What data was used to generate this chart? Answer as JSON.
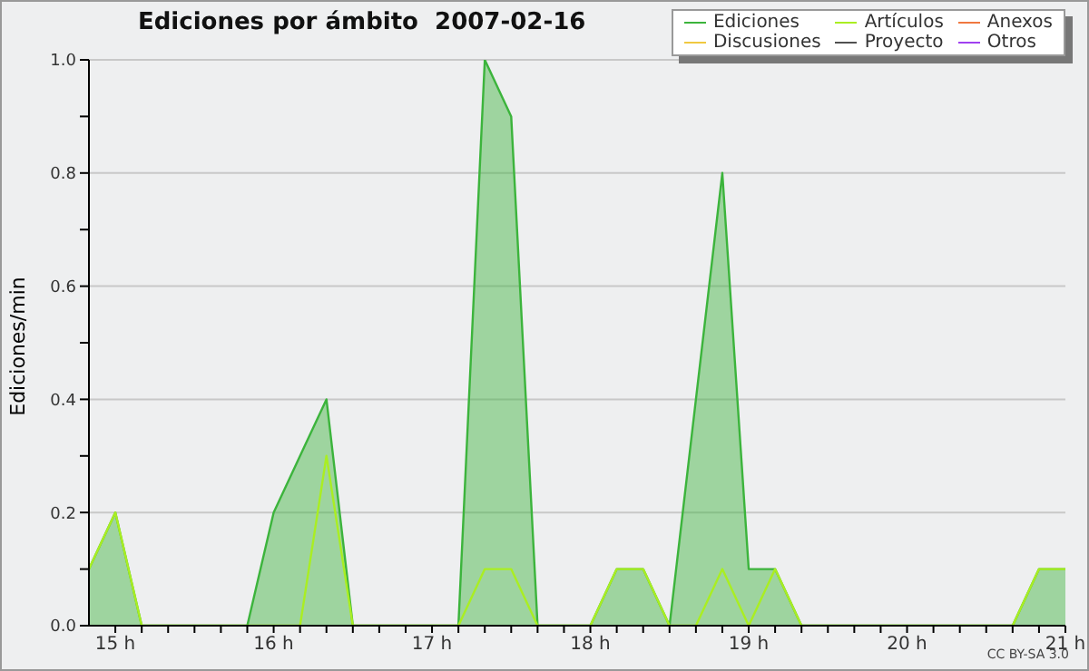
{
  "chart_data": {
    "type": "area",
    "title": "Ediciones por ámbito  2007-02-16",
    "ylabel": "Ediciones/min",
    "x": [
      14.833333,
      15,
      15.166667,
      15.333333,
      15.5,
      15.666667,
      15.833333,
      16,
      16.166667,
      16.333333,
      16.5,
      16.666667,
      16.833333,
      17,
      17.166667,
      17.333333,
      17.5,
      17.666667,
      17.833333,
      18,
      18.166667,
      18.333333,
      18.5,
      18.666667,
      18.833333,
      19,
      19.166667,
      19.333333,
      19.5,
      19.666667,
      19.833333,
      20,
      20.166667,
      20.333333,
      20.5,
      20.666667,
      20.833333,
      21
    ],
    "series": [
      {
        "name": "Ediciones",
        "color": "#3cb43c",
        "values": [
          0.1,
          0.2,
          0,
          0,
          0,
          0,
          0,
          0.2,
          0.3,
          0.4,
          0,
          0,
          0,
          0,
          0,
          1.0,
          0.9,
          0,
          0,
          0,
          0.1,
          0.1,
          0,
          0.4,
          0.8,
          0.1,
          0.1,
          0,
          0,
          0,
          0,
          0,
          0,
          0,
          0,
          0,
          0.1,
          0.1
        ]
      },
      {
        "name": "Artículos",
        "type": "line",
        "color": "#aaee22",
        "values": [
          0.1,
          0.2,
          0,
          0,
          0,
          0,
          0,
          0,
          0,
          0.3,
          0,
          0,
          0,
          0,
          0,
          0.1,
          0.1,
          0,
          0,
          0,
          0.1,
          0.1,
          0,
          0,
          0.1,
          0,
          0.1,
          0,
          0,
          0,
          0,
          0,
          0,
          0,
          0,
          0,
          0.1,
          0.1
        ]
      },
      {
        "name": "Anexos",
        "type": "line",
        "color": "#f07840",
        "values": [
          null,
          null,
          null,
          null,
          null,
          null,
          null,
          null,
          null,
          null,
          null,
          null,
          null,
          null,
          null,
          null,
          null,
          null,
          null,
          null,
          null,
          null,
          null,
          null,
          null,
          null,
          null,
          null,
          null,
          null,
          null,
          null,
          null,
          null,
          null,
          null,
          null,
          null
        ]
      },
      {
        "name": "Discusiones",
        "type": "line",
        "color": "#f0c840",
        "values": [
          null,
          null,
          null,
          null,
          null,
          null,
          null,
          null,
          null,
          null,
          null,
          null,
          null,
          null,
          null,
          null,
          null,
          null,
          null,
          null,
          null,
          null,
          null,
          null,
          null,
          null,
          null,
          null,
          null,
          null,
          null,
          null,
          null,
          null,
          null,
          null,
          null,
          null
        ]
      },
      {
        "name": "Proyecto",
        "type": "line",
        "color": "#505050",
        "values": [
          null,
          null,
          null,
          null,
          null,
          null,
          null,
          null,
          null,
          null,
          null,
          null,
          null,
          null,
          null,
          null,
          null,
          null,
          null,
          null,
          null,
          null,
          null,
          null,
          null,
          null,
          null,
          null,
          null,
          null,
          null,
          null,
          null,
          null,
          null,
          null,
          null,
          null
        ]
      },
      {
        "name": "Otros",
        "type": "line",
        "color": "#a040f0",
        "values": [
          null,
          null,
          null,
          null,
          null,
          null,
          null,
          null,
          null,
          null,
          null,
          null,
          null,
          null,
          null,
          null,
          null,
          null,
          null,
          null,
          null,
          null,
          null,
          null,
          null,
          null,
          null,
          null,
          null,
          null,
          null,
          null,
          null,
          null,
          null,
          null,
          null,
          null
        ]
      }
    ],
    "xlim": [
      14.833333,
      21
    ],
    "xticks": [
      {
        "value": 15,
        "label": "15 h"
      },
      {
        "value": 15.166667,
        "label": null
      },
      {
        "value": 15.333333,
        "label": null
      },
      {
        "value": 15.5,
        "label": null
      },
      {
        "value": 15.666667,
        "label": null
      },
      {
        "value": 15.833333,
        "label": null
      },
      {
        "value": 16,
        "label": "16 h"
      },
      {
        "value": 16.166667,
        "label": null
      },
      {
        "value": 16.333333,
        "label": null
      },
      {
        "value": 16.5,
        "label": null
      },
      {
        "value": 16.666667,
        "label": null
      },
      {
        "value": 16.833333,
        "label": null
      },
      {
        "value": 17,
        "label": "17 h"
      },
      {
        "value": 17.166667,
        "label": null
      },
      {
        "value": 17.333333,
        "label": null
      },
      {
        "value": 17.5,
        "label": null
      },
      {
        "value": 17.666667,
        "label": null
      },
      {
        "value": 17.833333,
        "label": null
      },
      {
        "value": 18,
        "label": "18 h"
      },
      {
        "value": 18.166667,
        "label": null
      },
      {
        "value": 18.333333,
        "label": null
      },
      {
        "value": 18.5,
        "label": null
      },
      {
        "value": 18.666667,
        "label": null
      },
      {
        "value": 18.833333,
        "label": null
      },
      {
        "value": 19,
        "label": "19 h"
      },
      {
        "value": 19.166667,
        "label": null
      },
      {
        "value": 19.333333,
        "label": null
      },
      {
        "value": 19.5,
        "label": null
      },
      {
        "value": 19.666667,
        "label": null
      },
      {
        "value": 19.833333,
        "label": null
      },
      {
        "value": 20,
        "label": "20 h"
      },
      {
        "value": 20.166667,
        "label": null
      },
      {
        "value": 20.333333,
        "label": null
      },
      {
        "value": 20.5,
        "label": null
      },
      {
        "value": 20.666667,
        "label": null
      },
      {
        "value": 20.833333,
        "label": null
      },
      {
        "value": 21,
        "label": "21 h"
      }
    ],
    "ylim": [
      0,
      1.0
    ],
    "yticks": [
      {
        "value": 0,
        "label": "0.0"
      },
      {
        "value": 0.1,
        "label": null
      },
      {
        "value": 0.2,
        "label": "0.2"
      },
      {
        "value": 0.3,
        "label": null
      },
      {
        "value": 0.4,
        "label": "0.4"
      },
      {
        "value": 0.5,
        "label": null
      },
      {
        "value": 0.6,
        "label": "0.6"
      },
      {
        "value": 0.7,
        "label": null
      },
      {
        "value": 0.8,
        "label": "0.8"
      },
      {
        "value": 0.9,
        "label": null
      },
      {
        "value": 1.0,
        "label": "1.0"
      }
    ],
    "grid": "y",
    "legend": "top right",
    "marker": "none",
    "line_style": "solid",
    "annotations": [
      "CC BY-SA 3.0"
    ]
  }
}
